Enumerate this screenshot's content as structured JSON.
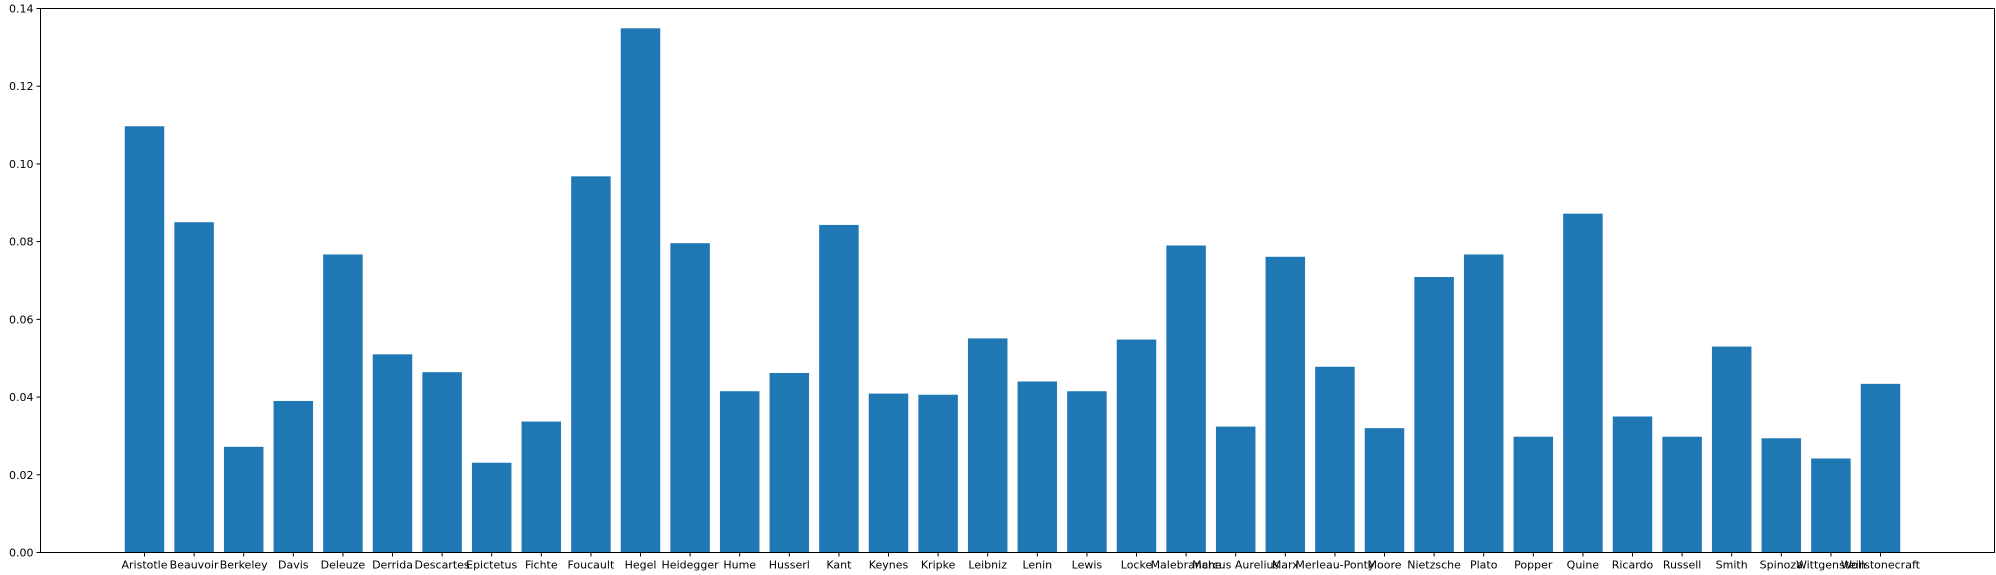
{
  "chart_data": {
    "type": "bar",
    "title": "",
    "xlabel": "",
    "ylabel": "",
    "ylim": [
      0,
      0.14
    ],
    "yticks": [
      0.0,
      0.02,
      0.04,
      0.06,
      0.08,
      0.1,
      0.12,
      0.14
    ],
    "ytick_labels": [
      "0.00",
      "0.02",
      "0.04",
      "0.06",
      "0.08",
      "0.10",
      "0.12",
      "0.14"
    ],
    "grid": false,
    "bar_color": "#1f77b4",
    "categories": [
      "Aristotle",
      "Beauvoir",
      "Berkeley",
      "Davis",
      "Deleuze",
      "Derrida",
      "Descartes",
      "Epictetus",
      "Fichte",
      "Foucault",
      "Hegel",
      "Heidegger",
      "Hume",
      "Husserl",
      "Kant",
      "Keynes",
      "Kripke",
      "Leibniz",
      "Lenin",
      "Lewis",
      "Locke",
      "Malebranche",
      "Marcus Aurelius",
      "Marx",
      "Merleau-Ponty",
      "Moore",
      "Nietzsche",
      "Plato",
      "Popper",
      "Quine",
      "Ricardo",
      "Russell",
      "Smith",
      "Spinoza",
      "Wittgenstein",
      "Wollstonecraft"
    ],
    "values": [
      0.1097,
      0.085,
      0.0272,
      0.039,
      0.0767,
      0.051,
      0.0464,
      0.0231,
      0.0337,
      0.0968,
      0.1349,
      0.0796,
      0.0415,
      0.0462,
      0.0843,
      0.0409,
      0.0406,
      0.0551,
      0.044,
      0.0415,
      0.0548,
      0.079,
      0.0324,
      0.0761,
      0.0478,
      0.032,
      0.0709,
      0.0767,
      0.0298,
      0.0872,
      0.035,
      0.0298,
      0.053,
      0.0294,
      0.0242,
      0.0434
    ]
  }
}
